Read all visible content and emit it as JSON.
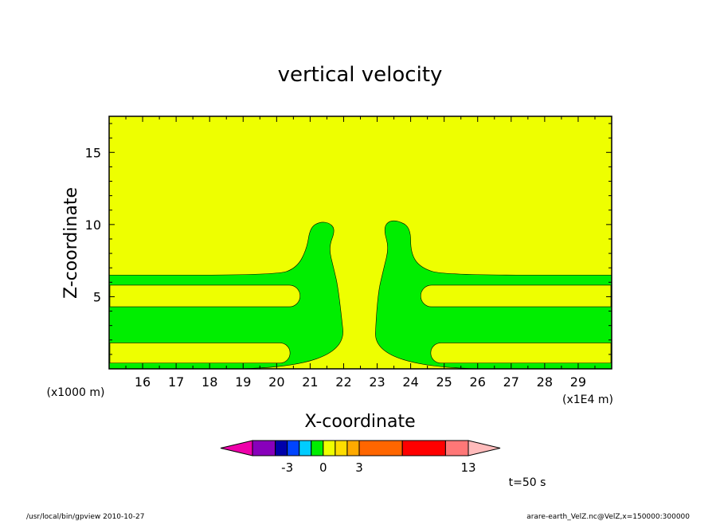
{
  "chart_data": {
    "type": "heatmap",
    "title": "vertical velocity",
    "xlabel": "X-coordinate",
    "ylabel": "Z-coordinate",
    "x_unit_label": "(x1E4 m)",
    "y_unit_label": "(x1000 m)",
    "xlim": [
      15.0,
      30.0
    ],
    "ylim": [
      0.0,
      17.5
    ],
    "x_ticks": [
      16,
      17,
      18,
      19,
      20,
      21,
      22,
      23,
      24,
      25,
      26,
      27,
      28,
      29
    ],
    "y_ticks": [
      5,
      10,
      15
    ],
    "x_tick_labels": [
      "16",
      "17",
      "18",
      "19",
      "20",
      "21",
      "22",
      "23",
      "24",
      "25",
      "26",
      "27",
      "28",
      "29"
    ],
    "y_tick_labels": [
      "5",
      "10",
      "15"
    ],
    "background_level_color": "#eeff00",
    "regions": [
      {
        "level_color": "#00ee00",
        "description_value": "-1 to 0",
        "outline": [
          [
            15.0,
            6.5
          ],
          [
            20.0,
            6.5
          ],
          [
            20.6,
            7.0
          ],
          [
            20.9,
            8.3
          ],
          [
            21.0,
            9.8
          ],
          [
            21.3,
            10.2
          ],
          [
            21.6,
            10.1
          ],
          [
            21.75,
            9.6
          ],
          [
            21.55,
            8.4
          ],
          [
            21.7,
            7.0
          ],
          [
            21.85,
            5.5
          ],
          [
            22.1,
            0.0
          ],
          [
            15.0,
            0.0
          ]
        ]
      },
      {
        "level_color": "#00ee00",
        "description_value": "-1 to 0",
        "outline": [
          [
            30.0,
            6.5
          ],
          [
            25.0,
            6.5
          ],
          [
            24.3,
            7.0
          ],
          [
            24.0,
            8.0
          ],
          [
            24.0,
            9.8
          ],
          [
            23.6,
            10.3
          ],
          [
            23.3,
            10.2
          ],
          [
            23.2,
            9.6
          ],
          [
            23.35,
            8.4
          ],
          [
            23.2,
            7.0
          ],
          [
            23.0,
            5.0
          ],
          [
            22.9,
            0.0
          ],
          [
            30.0,
            0.0
          ]
        ]
      }
    ],
    "yellow_tongues": [
      {
        "y_range": [
          4.3,
          5.8
        ],
        "x_range": [
          15.0,
          20.7
        ],
        "side": "left"
      },
      {
        "y_range": [
          0.4,
          1.8
        ],
        "x_range": [
          15.0,
          20.4
        ],
        "side": "left"
      },
      {
        "y_range": [
          4.3,
          5.8
        ],
        "x_range": [
          24.3,
          30.0
        ],
        "side": "right"
      },
      {
        "y_range": [
          0.4,
          1.8
        ],
        "x_range": [
          24.6,
          30.0
        ],
        "side": "right"
      }
    ],
    "colorbar": {
      "colors": [
        "#ee00aa",
        "#8800bb",
        "#0000aa",
        "#0044ff",
        "#00ccff",
        "#00ee00",
        "#eeff00",
        "#ffdd00",
        "#ffaa00",
        "#ff6600",
        "#ff0000",
        "#ff7777",
        "#ffbbbb"
      ],
      "labels": [
        {
          "text": "-3",
          "boundary_index": 3
        },
        {
          "text": "0",
          "boundary_index": 6
        },
        {
          "text": "3",
          "boundary_index": 9
        },
        {
          "text": "13",
          "boundary_index": 12
        }
      ]
    },
    "time_label": "t=50 s"
  },
  "footer": {
    "left": "/usr/local/bin/gpview   2010-10-27",
    "right": "arare-earth_VelZ.nc@VelZ,x=150000:300000"
  }
}
